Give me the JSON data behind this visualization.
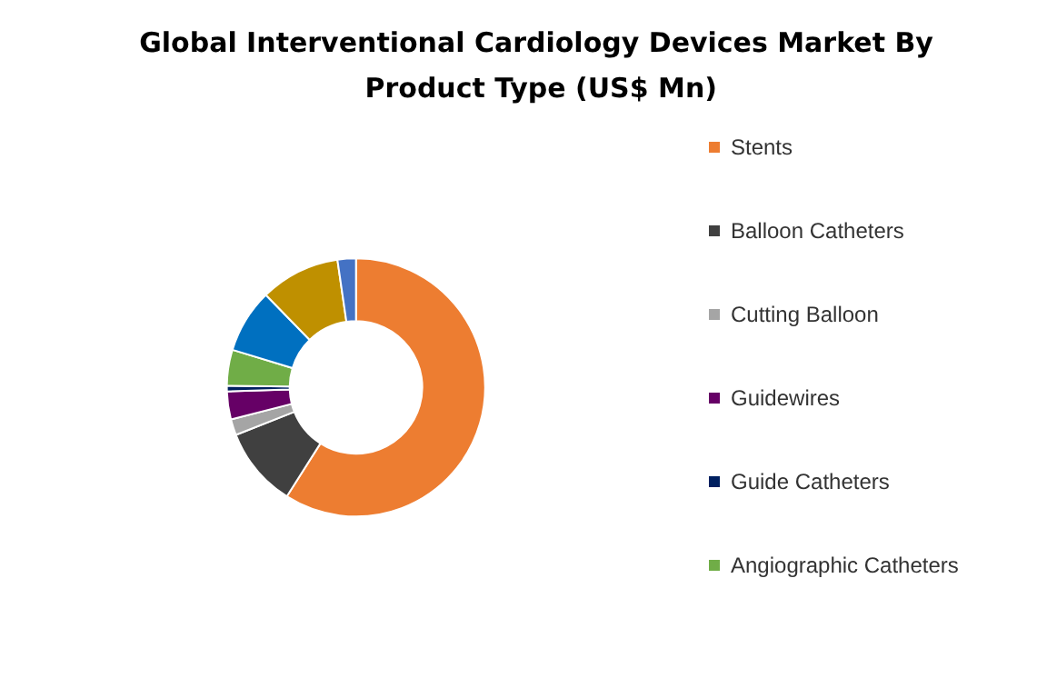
{
  "chart_data": {
    "type": "donut",
    "title": "Global Interventional Cardiology Devices Market By Product Type (US$ Mn)",
    "categories": [
      "Stents",
      "Balloon Catheters",
      "Cutting Balloon",
      "Guidewires",
      "Guide Catheters",
      "Angiographic Catheters",
      null,
      null,
      null
    ],
    "values": [
      59,
      10,
      2,
      3.5,
      0.7,
      4.5,
      8,
      10,
      2.3
    ],
    "colors": [
      "#ed7d31",
      "#404040",
      "#a5a5a5",
      "#660066",
      "#002060",
      "#70ad47",
      "#0070c0",
      "#bf9000",
      "#4472c4"
    ],
    "legend": "right"
  }
}
